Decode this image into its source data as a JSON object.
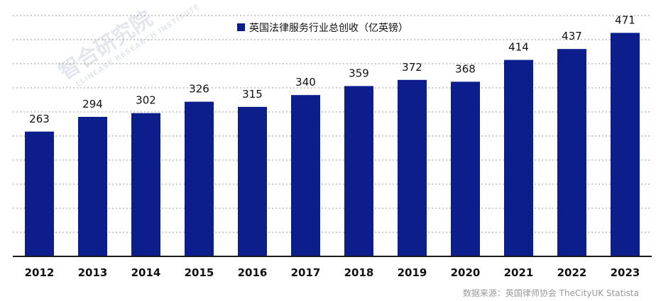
{
  "watermark": {
    "brand": "智合研究院",
    "sub": "LLINCAST RESEARCH INSTITUTE"
  },
  "legend": {
    "label": "英国法律服务行业总创收（亿英镑）"
  },
  "source": {
    "text": "数据来源：英国律师协会 TheCityUK Statista"
  },
  "colors": {
    "bar": "#0b1e8b",
    "axis": "#1a1a1a",
    "grid": "#9a9a9a"
  },
  "chart_data": {
    "type": "bar",
    "categories": [
      "2012",
      "2013",
      "2014",
      "2015",
      "2016",
      "2017",
      "2018",
      "2019",
      "2020",
      "2021",
      "2022",
      "2023"
    ],
    "series": [
      {
        "name": "英国法律服务行业总创收（亿英镑）",
        "values": [
          263,
          294,
          302,
          326,
          315,
          340,
          359,
          372,
          368,
          414,
          437,
          471
        ]
      }
    ],
    "title": "",
    "xlabel": "",
    "ylabel": "",
    "ylim": [
      0,
      480
    ],
    "grid": true,
    "legend_position": "top-center"
  }
}
